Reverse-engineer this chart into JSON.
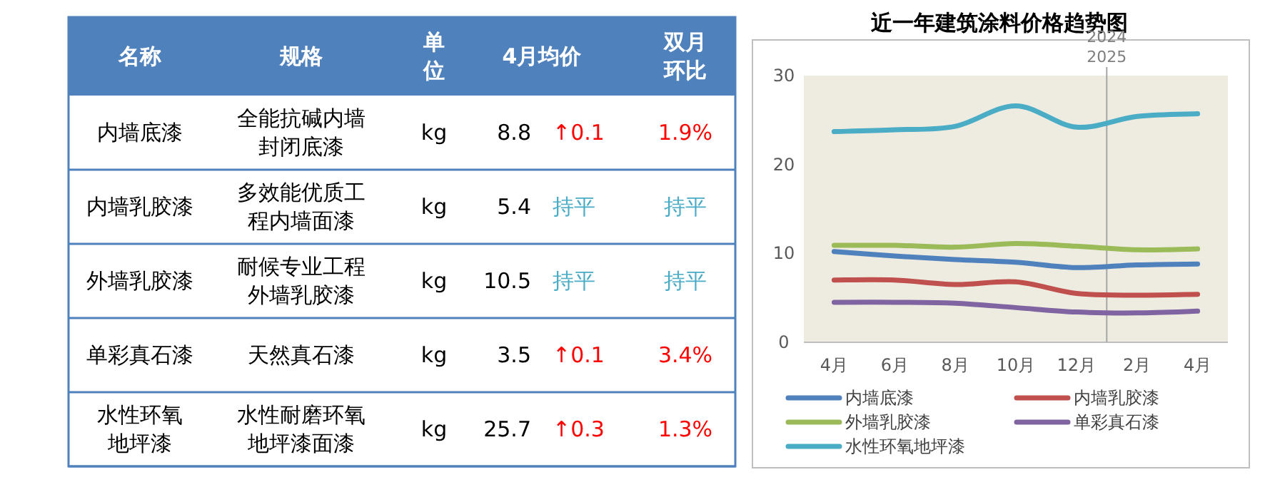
{
  "chart_data": [
    {
      "type": "other",
      "annotations": [
        "名称",
        "规格",
        "单位",
        "4月均价",
        "双月环比",
        "内墙底漆",
        "全能抗碱内墙封闭底漆",
        "kg",
        "8.8",
        "↑0.1",
        "1.9%",
        "内墙乳胶漆",
        "多效能优质工程内墙面漆",
        "kg",
        "5.4",
        "持平",
        "持平",
        "外墙乳胶漆",
        "耐候专业工程外墙乳胶漆",
        "kg",
        "10.5",
        "持平",
        "持平",
        "单彩真石漆",
        "天然真石漆",
        "kg",
        "3.5",
        "↑0.1",
        "3.4%",
        "水性环氧地坪漆",
        "水性耐磨环氧地坪漆面漆",
        "kg",
        "25.7",
        "↑0.3",
        "1.3%"
      ],
      "colors": [
        "#ffffff",
        "#ffffff",
        "#ffffff",
        "#ffffff",
        "#ffffff",
        "#000000",
        "#000000",
        "#000000",
        "#000000",
        "#ff0000",
        "#ff0000",
        "#000000",
        "#000000",
        "#000000",
        "#000000",
        "#4bacc6",
        "#4bacc6",
        "#000000",
        "#000000",
        "#000000",
        "#000000",
        "#4bacc6",
        "#4bacc6",
        "#000000",
        "#000000",
        "#000000",
        "#000000",
        "#ff0000",
        "#ff0000",
        "#000000",
        "#000000",
        "#000000",
        "#000000",
        "#ff0000",
        "#ff0000"
      ],
      "color": "#4f81bd"
    },
    {
      "type": "line",
      "title": "近一年建筑涂料价格趋势图",
      "categories": [
        "4月",
        "6月",
        "8月",
        "10月",
        "12月",
        "2月",
        "4月"
      ],
      "series": [
        {
          "name": "内墙底漆",
          "color": "#4f81bd",
          "values": [
            10.2,
            9.7,
            9.3,
            9.0,
            8.4,
            8.7,
            8.8
          ]
        },
        {
          "name": "内墙乳胶漆",
          "color": "#c0504d",
          "values": [
            7.0,
            7.0,
            6.5,
            6.8,
            5.5,
            5.3,
            5.4
          ]
        },
        {
          "name": "外墙乳胶漆",
          "color": "#9bbb59",
          "values": [
            10.9,
            10.9,
            10.7,
            11.1,
            10.8,
            10.4,
            10.5
          ]
        },
        {
          "name": "单彩真石漆",
          "color": "#8064a2",
          "values": [
            4.5,
            4.5,
            4.4,
            3.9,
            3.4,
            3.3,
            3.5
          ]
        },
        {
          "name": "水性环氧地坪漆",
          "color": "#4bacc6",
          "values": [
            23.7,
            23.9,
            24.3,
            26.6,
            24.2,
            25.4,
            25.7
          ]
        }
      ],
      "ylim": [
        0,
        30
      ],
      "yticks": [
        0,
        10,
        20,
        30
      ],
      "annotations": [
        "2024\n2025"
      ],
      "legend": "bottom",
      "grid": false,
      "marker": "none",
      "line_style": "solid"
    }
  ]
}
